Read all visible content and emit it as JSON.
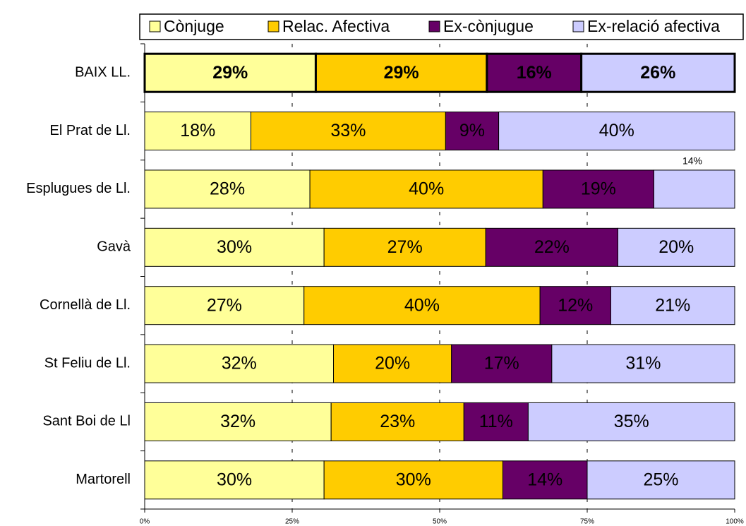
{
  "chart_data": {
    "type": "stacked_barh",
    "categories": [
      "BAIX LL.",
      "El Prat de Ll.",
      "Esplugues de Ll.",
      "Gavà",
      "Cornellà de Ll.",
      "St Feliu de Ll.",
      "Sant Boi de Ll",
      "Martorell"
    ],
    "series": [
      {
        "name": "Cònjuge",
        "color": "#ffff99",
        "values": [
          29,
          18,
          28,
          30.4,
          27,
          32,
          31.6,
          30.4
        ],
        "value_labels": [
          "29%",
          "18%",
          "28%",
          "30%",
          "27%",
          "32%",
          "32%",
          "30%"
        ]
      },
      {
        "name": "Relac. Afectiva",
        "color": "#ffcc00",
        "values": [
          29,
          33,
          39.5,
          27.4,
          40,
          20,
          22.5,
          30.3
        ],
        "value_labels": [
          "29%",
          "33%",
          "40%",
          "27%",
          "40%",
          "20%",
          "23%",
          "30%"
        ]
      },
      {
        "name": "Ex-cònjugue",
        "color": "#660066",
        "values": [
          16,
          9,
          18.8,
          22.4,
          12,
          17,
          10.9,
          14.3
        ],
        "value_labels": [
          "16%",
          "9%",
          "19%",
          "22%",
          "12%",
          "17%",
          "11%",
          "14%"
        ]
      },
      {
        "name": "Ex-relació afectiva",
        "color": "#ccccff",
        "values": [
          26,
          40,
          13.7,
          19.8,
          21,
          31,
          35,
          25
        ],
        "value_labels": [
          "26%",
          "40%",
          "14%",
          "20%",
          "21%",
          "31%",
          "35%",
          "25%"
        ]
      }
    ],
    "xlim": [
      0,
      100
    ],
    "xticks": [
      {
        "value": 0,
        "label": "0%"
      },
      {
        "value": 25,
        "label": "25%"
      },
      {
        "value": 50,
        "label": "50%"
      },
      {
        "value": 75,
        "label": "75%"
      },
      {
        "value": 100,
        "label": "100%"
      }
    ],
    "grid": true,
    "legend": "top"
  }
}
